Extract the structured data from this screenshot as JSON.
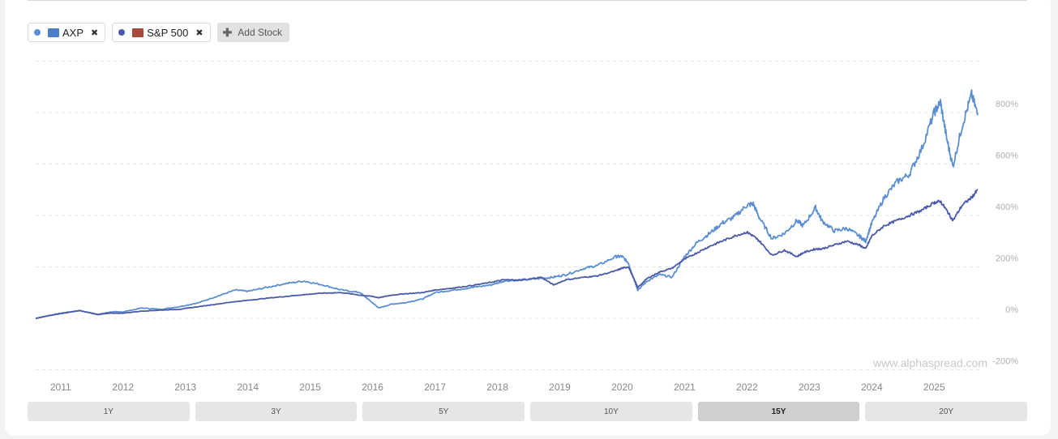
{
  "legend": {
    "items": [
      {
        "label": "AXP",
        "dot_color": "#5b8fd1",
        "logo_color": "#4e7dc9",
        "remove_icon": "close-icon"
      },
      {
        "label": "S&P 500",
        "dot_color": "#4a5aa8",
        "logo_color": "#a84a3a",
        "remove_icon": "close-icon"
      }
    ],
    "add_label": "Add Stock",
    "add_icon": "plus-icon"
  },
  "watermark": "www.alphaspread.com",
  "range_buttons": [
    "1Y",
    "3Y",
    "5Y",
    "10Y",
    "15Y",
    "20Y"
  ],
  "active_range": "15Y",
  "chart_data": {
    "type": "line",
    "x_ticks": [
      "2011",
      "2012",
      "2013",
      "2014",
      "2015",
      "2016",
      "2017",
      "2018",
      "2019",
      "2020",
      "2021",
      "2022",
      "2023",
      "2024",
      "2025"
    ],
    "y_ticks": [
      -200,
      0,
      200,
      400,
      600,
      800
    ],
    "y_tick_labels": [
      "-200%",
      "0%",
      "200%",
      "400%",
      "600%",
      "800%"
    ],
    "ylim": [
      -200,
      1000
    ],
    "xlim": [
      2010.6,
      2025.75
    ],
    "grid": true,
    "series": [
      {
        "name": "AXP",
        "color": "#5b8fd1",
        "points": [
          [
            2010.6,
            0
          ],
          [
            2010.8,
            10
          ],
          [
            2011.0,
            20
          ],
          [
            2011.3,
            30
          ],
          [
            2011.6,
            15
          ],
          [
            2011.8,
            25
          ],
          [
            2012.0,
            25
          ],
          [
            2012.3,
            40
          ],
          [
            2012.6,
            35
          ],
          [
            2012.9,
            45
          ],
          [
            2013.2,
            60
          ],
          [
            2013.5,
            85
          ],
          [
            2013.8,
            110
          ],
          [
            2014.0,
            105
          ],
          [
            2014.3,
            120
          ],
          [
            2014.6,
            135
          ],
          [
            2014.9,
            145
          ],
          [
            2015.2,
            130
          ],
          [
            2015.5,
            110
          ],
          [
            2015.8,
            100
          ],
          [
            2016.0,
            60
          ],
          [
            2016.1,
            40
          ],
          [
            2016.3,
            55
          ],
          [
            2016.5,
            60
          ],
          [
            2016.8,
            75
          ],
          [
            2017.0,
            100
          ],
          [
            2017.3,
            110
          ],
          [
            2017.6,
            120
          ],
          [
            2017.9,
            130
          ],
          [
            2018.1,
            145
          ],
          [
            2018.4,
            150
          ],
          [
            2018.7,
            155
          ],
          [
            2018.9,
            160
          ],
          [
            2019.1,
            170
          ],
          [
            2019.4,
            195
          ],
          [
            2019.6,
            205
          ],
          [
            2019.9,
            240
          ],
          [
            2020.0,
            240
          ],
          [
            2020.1,
            215
          ],
          [
            2020.25,
            110
          ],
          [
            2020.4,
            145
          ],
          [
            2020.6,
            170
          ],
          [
            2020.8,
            160
          ],
          [
            2021.0,
            240
          ],
          [
            2021.2,
            295
          ],
          [
            2021.4,
            330
          ],
          [
            2021.6,
            370
          ],
          [
            2021.8,
            395
          ],
          [
            2022.0,
            440
          ],
          [
            2022.1,
            445
          ],
          [
            2022.2,
            390
          ],
          [
            2022.4,
            310
          ],
          [
            2022.6,
            330
          ],
          [
            2022.8,
            380
          ],
          [
            2022.9,
            360
          ],
          [
            2023.1,
            430
          ],
          [
            2023.2,
            380
          ],
          [
            2023.4,
            340
          ],
          [
            2023.6,
            350
          ],
          [
            2023.8,
            320
          ],
          [
            2023.9,
            300
          ],
          [
            2024.0,
            370
          ],
          [
            2024.2,
            470
          ],
          [
            2024.4,
            530
          ],
          [
            2024.6,
            560
          ],
          [
            2024.8,
            660
          ],
          [
            2025.0,
            800
          ],
          [
            2025.1,
            840
          ],
          [
            2025.2,
            700
          ],
          [
            2025.3,
            590
          ],
          [
            2025.45,
            750
          ],
          [
            2025.6,
            870
          ],
          [
            2025.7,
            790
          ]
        ]
      },
      {
        "name": "S&P 500",
        "color": "#4a5aa8",
        "points": [
          [
            2010.6,
            0
          ],
          [
            2010.8,
            10
          ],
          [
            2011.0,
            18
          ],
          [
            2011.3,
            30
          ],
          [
            2011.6,
            15
          ],
          [
            2011.8,
            20
          ],
          [
            2012.0,
            20
          ],
          [
            2012.3,
            28
          ],
          [
            2012.6,
            32
          ],
          [
            2012.9,
            35
          ],
          [
            2013.2,
            45
          ],
          [
            2013.5,
            55
          ],
          [
            2013.8,
            65
          ],
          [
            2014.0,
            70
          ],
          [
            2014.3,
            78
          ],
          [
            2014.6,
            85
          ],
          [
            2014.9,
            92
          ],
          [
            2015.2,
            98
          ],
          [
            2015.5,
            100
          ],
          [
            2015.8,
            90
          ],
          [
            2016.0,
            85
          ],
          [
            2016.1,
            80
          ],
          [
            2016.3,
            90
          ],
          [
            2016.5,
            95
          ],
          [
            2016.8,
            100
          ],
          [
            2017.0,
            110
          ],
          [
            2017.3,
            118
          ],
          [
            2017.6,
            128
          ],
          [
            2017.9,
            140
          ],
          [
            2018.1,
            150
          ],
          [
            2018.4,
            148
          ],
          [
            2018.7,
            160
          ],
          [
            2018.9,
            130
          ],
          [
            2019.1,
            150
          ],
          [
            2019.4,
            160
          ],
          [
            2019.6,
            165
          ],
          [
            2019.9,
            185
          ],
          [
            2020.0,
            195
          ],
          [
            2020.1,
            200
          ],
          [
            2020.25,
            120
          ],
          [
            2020.4,
            155
          ],
          [
            2020.6,
            180
          ],
          [
            2020.8,
            195
          ],
          [
            2021.0,
            230
          ],
          [
            2021.2,
            255
          ],
          [
            2021.4,
            280
          ],
          [
            2021.6,
            300
          ],
          [
            2021.8,
            320
          ],
          [
            2022.0,
            335
          ],
          [
            2022.1,
            320
          ],
          [
            2022.2,
            300
          ],
          [
            2022.4,
            245
          ],
          [
            2022.6,
            265
          ],
          [
            2022.8,
            240
          ],
          [
            2022.9,
            255
          ],
          [
            2023.1,
            270
          ],
          [
            2023.2,
            270
          ],
          [
            2023.4,
            285
          ],
          [
            2023.6,
            300
          ],
          [
            2023.8,
            285
          ],
          [
            2023.9,
            270
          ],
          [
            2024.0,
            320
          ],
          [
            2024.2,
            360
          ],
          [
            2024.4,
            380
          ],
          [
            2024.6,
            400
          ],
          [
            2024.8,
            420
          ],
          [
            2025.0,
            450
          ],
          [
            2025.1,
            455
          ],
          [
            2025.2,
            420
          ],
          [
            2025.3,
            380
          ],
          [
            2025.45,
            440
          ],
          [
            2025.6,
            470
          ],
          [
            2025.7,
            500
          ]
        ]
      }
    ]
  }
}
